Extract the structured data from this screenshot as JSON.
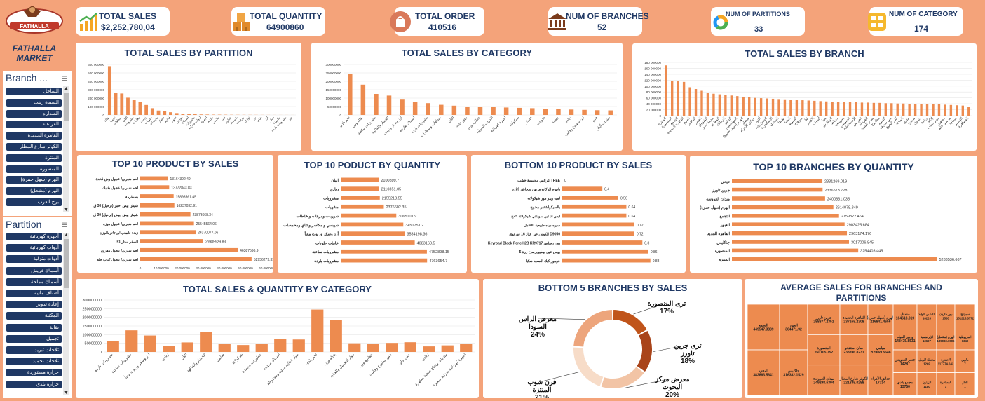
{
  "brand": {
    "name_line1": "FATHALLA",
    "name_line2": "MARKET",
    "logo_text": "FATHALLA"
  },
  "kpis": [
    {
      "label": "TOTAL SALES",
      "value": "$2,252,780,04",
      "icon": "chart-up-icon"
    },
    {
      "label": "TOTAL QUANTITY",
      "value": "64900860",
      "icon": "boxes-icon"
    },
    {
      "label": "TOTAL ORDER",
      "value": "410516",
      "icon": "order-bag-icon"
    },
    {
      "label": "NUM OF BRANCHES",
      "value": "52",
      "icon": "bank-icon"
    },
    {
      "label": "NUM OF PARTITIONS",
      "value": "33",
      "icon": "donut-icon"
    },
    {
      "label": "NUM OF CATEGORY",
      "value": "174",
      "icon": "grid-icon"
    }
  ],
  "slicers": {
    "branch": {
      "title": "Branch ...",
      "items": [
        "الساحل",
        "السيدة زينب",
        "الصداره",
        "الفراعنة",
        "القاهرة الجديدة",
        "الكوثر شارع المطار",
        "المنترة",
        "المنصورة",
        "الهرم (سهل حمزة)",
        "الهرم (مشعل)",
        "برج العرب"
      ]
    },
    "partition": {
      "title": "Partition",
      "items": [
        "أجهزة كهربائية",
        "أدوات كهربائية",
        "أدوات منزلية",
        "أسماك فريش",
        "أسماك مملحة",
        "أصناف مائية",
        "إعادة تدوير",
        "المكتبة",
        "بقالة",
        "تجميل",
        "ثلاجات تبريد",
        "ثلاجات تجميد",
        "جزارة مستوردة",
        "جزارة بلدي"
      ]
    }
  },
  "colors": {
    "bar": "#ed8b4f",
    "navy": "#1f3864",
    "bg": "#f4a37a",
    "donut": [
      "#c0541a",
      "#a9441a",
      "#f2c4a5",
      "#f7dcc8",
      "#eda57c"
    ]
  },
  "chart_data": [
    {
      "id": "sales_by_partition",
      "type": "bar",
      "title": "TOTAL SALES BY PARTITION",
      "ylim": [
        0,
        600000000
      ],
      "yticks": [
        "0",
        "100 000000",
        "200 000000",
        "300 000000",
        "400 000000",
        "500 000000",
        "600 000000"
      ],
      "categories": [
        "بقالة",
        "تجميل",
        "منظفات",
        "ألبان",
        "مشروبات",
        "معلبات",
        "زيوت",
        "حلويات",
        "مجمدات",
        "خضار",
        "فاكهة",
        "لحوم",
        "دواجن",
        "أسماك",
        "مخبوزات",
        "أدوات منزلية",
        "أجهزة",
        "مكتبة",
        "ملابس",
        "لعب",
        "عطور",
        "بلاستيك",
        "ورقيات",
        "توابل",
        "بن",
        "شاي",
        "أرز",
        "سكر",
        "مكرونة",
        "مشروبات باردة",
        "خبز"
      ],
      "values": [
        580000000,
        260000000,
        255000000,
        205000000,
        180000000,
        150000000,
        118000000,
        80000000,
        52000000,
        45000000,
        32000000,
        22000000,
        14000000,
        10000000,
        8000000,
        6000000,
        5000000,
        4000000,
        3500000,
        3000000,
        2500000,
        2000000,
        1800000,
        1500000,
        1300000,
        1100000,
        900000,
        700000,
        600000,
        500000,
        400000
      ]
    },
    {
      "id": "sales_by_category",
      "type": "bar",
      "title": "TOTAL SALES BY CATEGORY",
      "ylim": [
        0,
        300000000
      ],
      "yticks": [
        "0",
        "50000000",
        "100000000",
        "150000000",
        "200000000",
        "250000000",
        "300000000"
      ],
      "categories": [
        "لحم بلدي",
        "بقالة وزن",
        "مشروبات ساخنة",
        "الخضار والفاكهة",
        "أرز وسكر وزيوت",
        "أسماك طازجة",
        "مشروبات باردة",
        "منظفات ومعطرات",
        "البان",
        "بيض عادي",
        "عطارة وزن",
        "الأدوات المنزلية",
        "أجهزة كهربائية",
        "شيكولاتة",
        "عصائر",
        "حلويات",
        "زيوت",
        "زبادي",
        "لبن مطبوخ وحليب",
        "جبن",
        "منتجات ألبان"
      ],
      "values": [
        245000000,
        180000000,
        125000000,
        115000000,
        95000000,
        75000000,
        70000000,
        60000000,
        55000000,
        50000000,
        48000000,
        46000000,
        44000000,
        42000000,
        40000000,
        36000000,
        34000000,
        32000000,
        30000000,
        28000000,
        27000000
      ]
    },
    {
      "id": "sales_by_branch",
      "type": "bar",
      "title": "TOTAL SALES BY BRANCH",
      "ylim": [
        0,
        180000000
      ],
      "yticks": [
        "0",
        "20 000000",
        "40 000000",
        "60 000000",
        "80 000000",
        "100 000000",
        "120 000000",
        "140 000000",
        "160 000000",
        "180 000000"
      ],
      "categories": [
        "المنترة",
        "المنصورة",
        "التجمع",
        "القاهرة الجديدة",
        "الهرم",
        "العاشر",
        "العبور",
        "الشروق",
        "مدينة نصر",
        "المعادي",
        "الزمالك",
        "الدقي",
        "المهندسين",
        "الهرم (سهل حمزة)",
        "فيصل",
        "حدائق الأهرام",
        "أكتوبر",
        "الشيخ زايد",
        "الإسكندرية",
        "الساحل",
        "طنطا",
        "المنيا",
        "أسيوط",
        "سوهاج",
        "قنا",
        "الأقصر",
        "أسوان",
        "بنها",
        "الزقازيق",
        "دمياط",
        "بورسعيد",
        "السويس",
        "الإسماعيلية",
        "العريش",
        "الغردقة",
        "شرم الشيخ",
        "مطروح",
        "الفيوم",
        "بني سويف",
        "كفر الشيخ",
        "المحلة",
        "ملوي",
        "سمنود",
        "دسوق",
        "رشيد",
        "إدكو",
        "كوم حمادة",
        "دمنهور",
        "مرسى علم",
        "سفاجا",
        "القصير",
        "العصافرة"
      ],
      "values": [
        170000000,
        118000000,
        116000000,
        114000000,
        96000000,
        90000000,
        84000000,
        78000000,
        74000000,
        72000000,
        70000000,
        68000000,
        66000000,
        64000000,
        62000000,
        60000000,
        59000000,
        58000000,
        57000000,
        56000000,
        55000000,
        54000000,
        53000000,
        52000000,
        51000000,
        50000000,
        49000000,
        48000000,
        47000000,
        46000000,
        46000000,
        45000000,
        45000000,
        44000000,
        44000000,
        43000000,
        43000000,
        42000000,
        42000000,
        41000000,
        41000000,
        40000000,
        40000000,
        39000000,
        39000000,
        38000000,
        38000000,
        37000000,
        36000000,
        35000000,
        34000000,
        30000000
      ]
    },
    {
      "id": "top10_product_sales",
      "type": "bar",
      "title": "TOP 10 PRODUCT BY SALES",
      "orientation": "horizontal",
      "xlim": [
        0,
        60000000
      ],
      "xticks": [
        "0",
        "10 000000",
        "20 000000",
        "30 000000",
        "40 000000",
        "50 000000",
        "60 000000"
      ],
      "categories": [
        "لحم شيرين/ عجول وش فخدة",
        "لحم شيرين/ عجول بفتيك",
        "بسطرمة",
        "شيش بيض احمر (ترحيل) 30 ق",
        "شيش بيض ابيض (ترحيل) 30 ق",
        "لحم شيرين/ عجول موزه",
        "زبدة طبيعي اورجانو بالوزن",
        "الصفر ستار 51",
        "لحم شيرين/ عجول مفروم",
        "لحم شيرين/ عجول كباب حلة"
      ],
      "values": [
        13164392.49,
        13772843.83,
        15895561.45,
        16237032.91,
        23873668.34,
        25545564.06,
        26370077.06,
        29985929.83,
        46387596.9,
        52956279.39
      ],
      "labels": [
        "13164392.49",
        "13772843.83",
        "15895561.45",
        "16237032.91",
        "23873668.34",
        "25545564.06",
        "26370077.06",
        "29985929.83",
        "46387596.9",
        "52956279.39"
      ]
    },
    {
      "id": "top10_product_qty",
      "type": "bar",
      "title": "TOP 10 PODUCT BY QUANTITY",
      "orientation": "horizontal",
      "categories": [
        "البان",
        "زبادي",
        "مشروبات",
        "مشهيات",
        "شوربات ومرقات و خلطات",
        "شيبسي و مكاسر وشاي ومحمصات",
        "أرز وسكر وزيوت معبأ",
        "خامات حلويات",
        "مشروبات ساخنة",
        "مشروبات باردة"
      ],
      "values": [
        2100899.7,
        2110351.05,
        2155218.55,
        2376602.35,
        3065101.9,
        3451751.2,
        3534198.36,
        4083160.5,
        4752898.15,
        4763654.7
      ],
      "labels": [
        "2100899.7",
        "2110351.05",
        "2155218.55",
        "2376602.35",
        "3065101.9",
        "3451751.2",
        "3534198.36",
        "4083160.5",
        "4752898.15",
        "4763654.7"
      ]
    },
    {
      "id": "bottom10_product_sales",
      "type": "bar",
      "title": "BOTTOM 10 PRODUCT BY SALES",
      "orientation": "horizontal",
      "categories": [
        "عرائس مجسمة خشب TREE",
        "بانيوم الركاتو مربين سجاش 20 ج",
        "لمبة ويلز موز شيكولاتة",
        "بالسيكولشتعو مضوج",
        "ابس انا ابن سوداني شيكولاتة 25ج",
        "سيوه مياه طبيعية 500مل",
        "الكوس حبر عياد 16 س نوي D9050",
        "Keyroad Black Pencil 2B KR9717 بس رصاص",
        "بوس عين بيطيوبرساح زرة 5",
        "عوموز كيك الصعيد شكيا"
      ],
      "values": [
        0,
        0.4,
        0.56,
        0.64,
        0.64,
        0.72,
        0.72,
        0.8,
        0.86,
        0.88
      ],
      "labels": [
        "0",
        "0.4",
        "0.56",
        "0.64",
        "0.64",
        "0.72",
        "0.72",
        "0.8",
        "0.86",
        "0.88"
      ]
    },
    {
      "id": "top10_branches_qty",
      "type": "bar",
      "title": "TOP 10 BRANCHES BY QUANTITY",
      "orientation": "horizontal",
      "categories": [
        "ديبس",
        "جرين تاورز",
        "ميدان العروسة",
        "الهرم (سهل حمزة)",
        "التجمع",
        "العبور",
        "القاهرة الجديد",
        "جنكليس",
        "المنصورة",
        "المنترة"
      ],
      "values": [
        2331269.019,
        2336573.728,
        2400831.035,
        2614078.849,
        2759322.464,
        2903425.684,
        2963174.176,
        3017006.845,
        3254403.445,
        5283536.667
      ],
      "labels": [
        "2331269.019",
        "2336573.728",
        "2400831.035",
        "2614078.849",
        "2759322.464",
        "2903425.684",
        "2963174.176",
        "3017006.845",
        "3254403.445",
        "5283536.667"
      ]
    },
    {
      "id": "sales_qty_by_category",
      "type": "bar",
      "title": "TOTAL SALES & QUANTITY BY CATEGORY",
      "ylim": [
        0,
        300000000
      ],
      "yticks": [
        "0",
        "50000000",
        "100000000",
        "150000000",
        "200000000",
        "250000000",
        "300000000"
      ],
      "categories": [
        "مشروبات بارده",
        "مشروبات ساخنة",
        "أرز وسكر وزيوت معبأ",
        "زبادي",
        "البان",
        "الخضار والفاكهة",
        "صابون",
        "شيكولاتة",
        "عطورات مجمدة",
        "أسماك مملحة",
        "مواد غذائية معلبة ومحفوظة",
        "لحم بلدي",
        "بقالة وزن",
        "مواد التجميل والعناية",
        "عطارة وزن",
        "جبن مطبوخ وحليب",
        "حلي حلي",
        "زبادي",
        "منتجات ونجاح صحية مطهرة",
        "أجهزة كهربائية منزلية صغيرة"
      ],
      "values": [
        62000000,
        125000000,
        95000000,
        35000000,
        55000000,
        115000000,
        45000000,
        40000000,
        48000000,
        75000000,
        72000000,
        245000000,
        185000000,
        50000000,
        48000000,
        52000000,
        56000000,
        32000000,
        38000000,
        48000000
      ]
    },
    {
      "id": "bottom5_branches",
      "type": "pie",
      "title": "BOTTOM 5 BRANCHES BY SALES",
      "categories": [
        "ترى المنصورة",
        "ترى جرين تاورز",
        "معرض مركز البحوث",
        "فرن شوب المنتزة",
        "معرض الراس السودا"
      ],
      "values": [
        17,
        18,
        20,
        21,
        24
      ],
      "labels": [
        "ترى المنصورة",
        "ترى جرين تاورز",
        "معرض مركز البحوث",
        "فرن شوب المنتزة",
        "معرض الراس السودا"
      ],
      "pct": [
        "17%",
        "18%",
        "20%",
        "21%",
        "24%"
      ]
    },
    {
      "id": "avg_sales_treemap",
      "type": "heatmap",
      "title": "AVERAGE SALES FOR BRANCHES AND PARTITIONS",
      "zero_label": "0",
      "cells": [
        {
          "label": "التجمع 449547.3889"
        },
        {
          "label": "المتنزه 382863.5641"
        },
        {
          "label": "العبور 364471.92"
        },
        {
          "label": "جاكليس 316382.1529"
        },
        {
          "label": "جرين تاورز 288877.2351"
        },
        {
          "label": "المنصورة 260105.752"
        },
        {
          "label": "ميدان العروسة 249298.6304"
        },
        {
          "label": "القاهرة الجديدة 237165.2308"
        },
        {
          "label": "سان استفانو 233396.8231"
        },
        {
          "label": "الكوثر شارع المطار 221835.0288"
        },
        {
          "label": "الهرم (سهل حمزة) 216841.4656"
        },
        {
          "label": "ميامي 205669.5648"
        },
        {
          "label": "حدائق الأهرام 17314"
        },
        {
          "label": "مشعل 164618.919"
        },
        {
          "label": "وابور المياه 148475.8531"
        },
        {
          "label": "جسر السويس 14287"
        },
        {
          "label": "مجمع بلدي 13750"
        },
        {
          "label": "خالد بن الوليد 16226"
        },
        {
          "label": "الإبراهيمية 13697"
        },
        {
          "label": "معطلة الرمل 1269"
        },
        {
          "label": "الزيتون 1180"
        },
        {
          "label": "روز جاردن 1538"
        },
        {
          "label": "الهرم (مشعل) 139083.6506"
        },
        {
          "label": "الحضرة 117774.042"
        },
        {
          "label": "العصافرة 1"
        },
        {
          "label": "سيوتيج 151215.8772"
        },
        {
          "label": "المريوطية 1349"
        },
        {
          "label": "مارين 7"
        },
        {
          "label": "الغاز 1"
        }
      ]
    }
  ]
}
